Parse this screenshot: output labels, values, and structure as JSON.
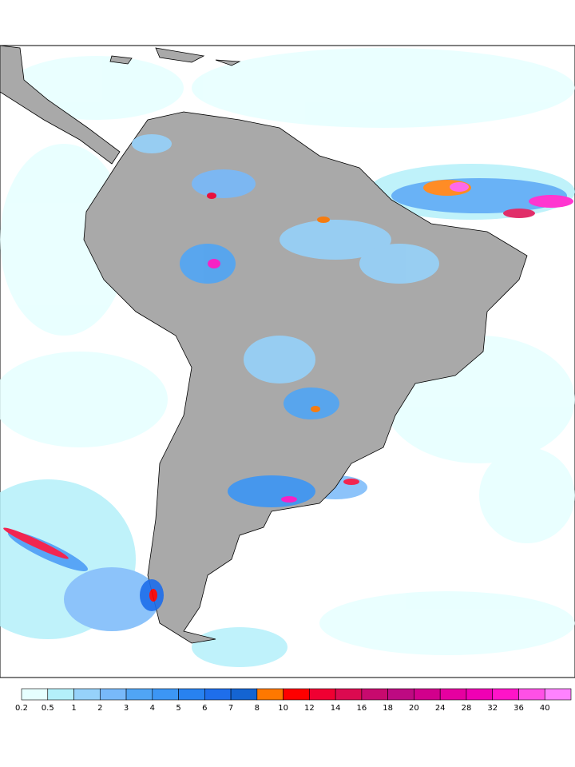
{
  "colorbar": {
    "ticks": [
      "0.2",
      "0.5",
      "1",
      "2",
      "3",
      "4",
      "5",
      "6",
      "7",
      "8",
      "10",
      "12",
      "14",
      "16",
      "18",
      "20",
      "24",
      "28",
      "32",
      "36",
      "40"
    ],
    "colors": [
      "#e6ffff",
      "#b4f0fa",
      "#96d2fa",
      "#78b9fa",
      "#50a5f5",
      "#3c96f5",
      "#2882f0",
      "#1e6eeb",
      "#1464d2",
      "#ff7800",
      "#ff0000",
      "#f00032",
      "#dc0a50",
      "#c80a6e",
      "#be0a82",
      "#d2008c",
      "#e600a0",
      "#f000b4",
      "#ff14c8",
      "#ff50e6",
      "#ff82ff"
    ]
  }
}
